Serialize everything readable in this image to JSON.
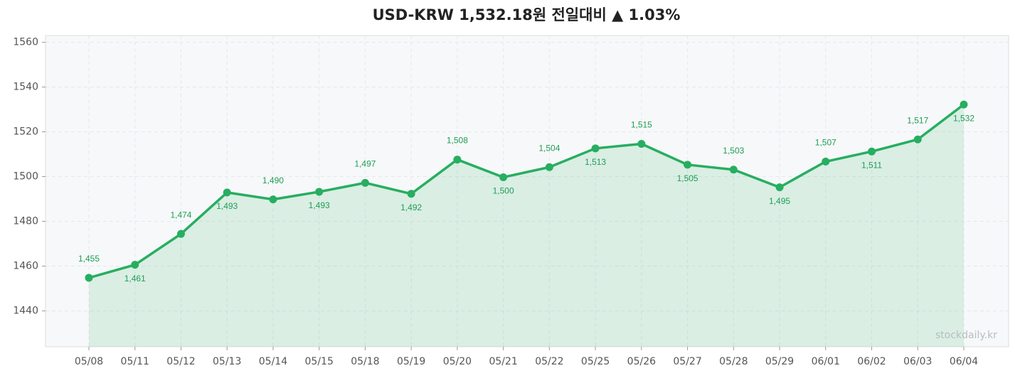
{
  "chart_data": {
    "type": "line",
    "title": "USD-KRW  1,532.18원  전일대비 ▲ 1.03%",
    "watermark": "stockdaily.kr",
    "categories": [
      "05/08",
      "05/11",
      "05/12",
      "05/13",
      "05/14",
      "05/15",
      "05/18",
      "05/19",
      "05/20",
      "05/21",
      "05/22",
      "05/25",
      "05/26",
      "05/27",
      "05/28",
      "05/29",
      "06/01",
      "06/02",
      "06/03",
      "06/04"
    ],
    "series": [
      {
        "name": "USD-KRW",
        "color": "#27ae60",
        "values": [
          1454.8,
          1460.6,
          1474.4,
          1492.9,
          1489.8,
          1493.2,
          1497.2,
          1492.3,
          1507.6,
          1499.7,
          1504.2,
          1512.6,
          1514.6,
          1505.3,
          1503.1,
          1495.2,
          1506.7,
          1511.2,
          1516.6,
          1532.18
        ],
        "value_labels": [
          "1,455",
          "1,461",
          "1,474",
          "1,493",
          "1,490",
          "1,493",
          "1,497",
          "1,492",
          "1,508",
          "1,500",
          "1,504",
          "1,513",
          "1,515",
          "1,505",
          "1,503",
          "1,495",
          "1,507",
          "1,511",
          "1,517",
          "1,532"
        ]
      }
    ],
    "ylim": [
      1424,
      1563
    ],
    "yticks": [
      1440,
      1460,
      1480,
      1500,
      1520,
      1540,
      1560
    ],
    "grid": true,
    "area_fill": true
  }
}
